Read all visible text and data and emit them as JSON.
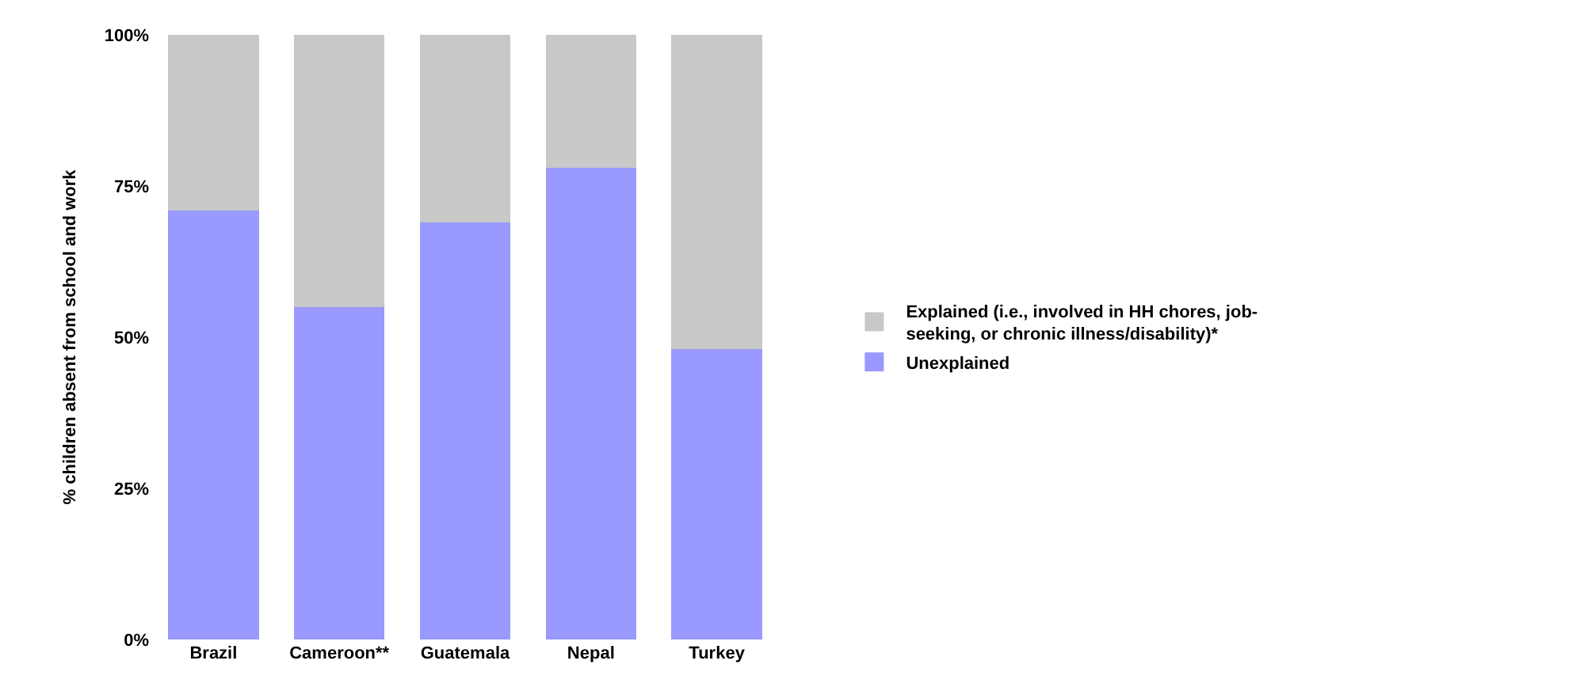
{
  "chart_data": {
    "type": "bar",
    "stacked": true,
    "ylabel": "% children absent from school and work",
    "categories": [
      "Brazil",
      "Cameroon**",
      "Guatemala",
      "Nepal",
      "Turkey"
    ],
    "series": [
      {
        "name": "Unexplained",
        "color": "#9999ff",
        "values": [
          71,
          55,
          69,
          78,
          48
        ]
      },
      {
        "name": "Explained (i.e., involved in HH chores, job-seeking, or chronic illness/disability)*",
        "color": "#c8c8c8",
        "values": [
          29,
          45,
          31,
          22,
          52
        ]
      }
    ],
    "ylim": [
      0,
      100
    ],
    "yticks": [
      {
        "value": 0,
        "label": "0%"
      },
      {
        "value": 25,
        "label": "25%"
      },
      {
        "value": 50,
        "label": "50%"
      },
      {
        "value": 75,
        "label": "75%"
      },
      {
        "value": 100,
        "label": "100%"
      }
    ],
    "legend": "right"
  }
}
